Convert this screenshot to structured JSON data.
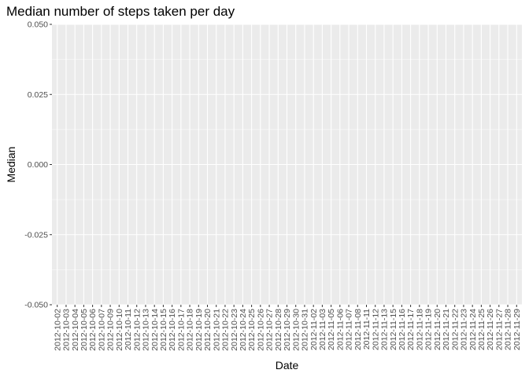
{
  "chart_data": {
    "type": "bar",
    "title": "Median number of steps taken per day",
    "xlabel": "Date",
    "ylabel": "Median",
    "ylim": [
      -0.05,
      0.05
    ],
    "yticks": [
      "-0.050",
      "-0.025",
      "0.000",
      "0.025",
      "0.050"
    ],
    "categories": [
      "2012-10-02",
      "2012-10-03",
      "2012-10-04",
      "2012-10-05",
      "2012-10-06",
      "2012-10-07",
      "2012-10-09",
      "2012-10-10",
      "2012-10-11",
      "2012-10-12",
      "2012-10-13",
      "2012-10-14",
      "2012-10-15",
      "2012-10-16",
      "2012-10-17",
      "2012-10-18",
      "2012-10-19",
      "2012-10-20",
      "2012-10-21",
      "2012-10-22",
      "2012-10-23",
      "2012-10-24",
      "2012-10-25",
      "2012-10-26",
      "2012-10-27",
      "2012-10-28",
      "2012-10-29",
      "2012-10-30",
      "2012-10-31",
      "2012-11-02",
      "2012-11-03",
      "2012-11-05",
      "2012-11-06",
      "2012-11-07",
      "2012-11-08",
      "2012-11-11",
      "2012-11-12",
      "2012-11-13",
      "2012-11-15",
      "2012-11-16",
      "2012-11-17",
      "2012-11-18",
      "2012-11-19",
      "2012-11-20",
      "2012-11-21",
      "2012-11-22",
      "2012-11-23",
      "2012-11-24",
      "2012-11-25",
      "2012-11-26",
      "2012-11-27",
      "2012-11-28",
      "2012-11-29"
    ],
    "values": [
      0,
      0,
      0,
      0,
      0,
      0,
      0,
      0,
      0,
      0,
      0,
      0,
      0,
      0,
      0,
      0,
      0,
      0,
      0,
      0,
      0,
      0,
      0,
      0,
      0,
      0,
      0,
      0,
      0,
      0,
      0,
      0,
      0,
      0,
      0,
      0,
      0,
      0,
      0,
      0,
      0,
      0,
      0,
      0,
      0,
      0,
      0,
      0,
      0,
      0,
      0,
      0,
      0
    ],
    "grid": true,
    "legend": "none",
    "colors": {
      "panel": "#ebebeb",
      "grid": "#ffffff",
      "text": "#000000",
      "tick_text": "#4d4d4d",
      "tick": "#333333"
    }
  }
}
